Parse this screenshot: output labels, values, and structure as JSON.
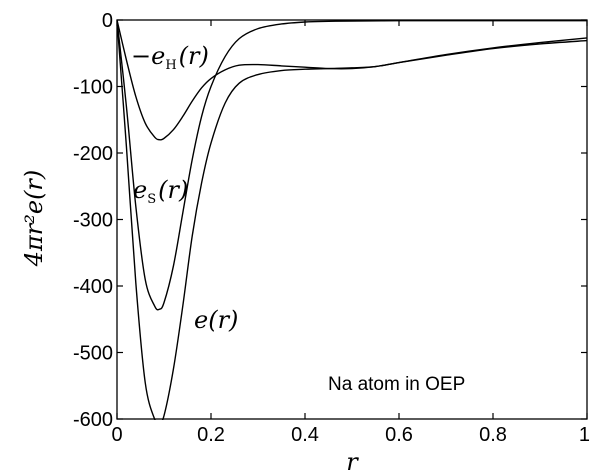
{
  "chart_data": {
    "type": "line",
    "xlabel": "r",
    "ylabel": "4πr²e(r)",
    "xlim": [
      0,
      1
    ],
    "ylim": [
      -600,
      0
    ],
    "xticks": [
      {
        "value": 0,
        "label": "0"
      },
      {
        "value": 0.2,
        "label": "0.2"
      },
      {
        "value": 0.4,
        "label": "0.4"
      },
      {
        "value": 0.6,
        "label": "0.6"
      },
      {
        "value": 0.8,
        "label": "0.8"
      },
      {
        "value": 1,
        "label": "1"
      }
    ],
    "yticks": [
      {
        "value": 0,
        "label": "0"
      },
      {
        "value": -100,
        "label": "-100"
      },
      {
        "value": -200,
        "label": "-200"
      },
      {
        "value": -300,
        "label": "-300"
      },
      {
        "value": -400,
        "label": "-400"
      },
      {
        "value": -500,
        "label": "-500"
      },
      {
        "value": -600,
        "label": "-600"
      }
    ],
    "grid": false,
    "annotation": "Na atom in OEP",
    "series": [
      {
        "name": "−e_H(r)",
        "label_main": "−e",
        "label_sub": "H",
        "label_tail": "(r)",
        "x": [
          0,
          0.02,
          0.04,
          0.06,
          0.08,
          0.09,
          0.1,
          0.12,
          0.14,
          0.16,
          0.18,
          0.2,
          0.23,
          0.26,
          0.3,
          0.35,
          0.4,
          0.45,
          0.5,
          0.55,
          0.6,
          0.7,
          0.8,
          0.9,
          1.0
        ],
        "y": [
          0,
          -60,
          -115,
          -155,
          -176,
          -180,
          -178,
          -165,
          -145,
          -122,
          -102,
          -88,
          -75,
          -68,
          -67,
          -69,
          -71,
          -73,
          -73,
          -70,
          -64,
          -52,
          -42,
          -34,
          -27
        ]
      },
      {
        "name": "e_S(r)",
        "label_main": "e",
        "label_sub": "S",
        "label_tail": "(r)",
        "x": [
          0,
          0.02,
          0.04,
          0.06,
          0.08,
          0.09,
          0.1,
          0.12,
          0.14,
          0.16,
          0.18,
          0.2,
          0.23,
          0.26,
          0.3,
          0.35,
          0.4,
          0.45,
          0.5,
          0.6,
          0.7,
          0.8,
          0.9,
          1.0
        ],
        "y": [
          0,
          -130,
          -280,
          -390,
          -430,
          -435,
          -425,
          -370,
          -290,
          -210,
          -145,
          -100,
          -55,
          -28,
          -13,
          -6,
          -3,
          -2,
          -1.5,
          -1,
          -1,
          -1,
          -1,
          -1
        ]
      },
      {
        "name": "e(r)",
        "label_main": "e",
        "label_sub": "",
        "label_tail": "(r)",
        "x": [
          0,
          0.02,
          0.04,
          0.06,
          0.08,
          0.09,
          0.1,
          0.12,
          0.14,
          0.16,
          0.18,
          0.2,
          0.23,
          0.26,
          0.3,
          0.35,
          0.4,
          0.45,
          0.5,
          0.55,
          0.6,
          0.7,
          0.8,
          0.9,
          1.0
        ],
        "y": [
          0,
          -190,
          -395,
          -545,
          -600,
          -605,
          -595,
          -525,
          -430,
          -325,
          -245,
          -185,
          -125,
          -95,
          -82,
          -76,
          -74,
          -73,
          -72,
          -70,
          -64,
          -53,
          -43,
          -36,
          -31
        ]
      }
    ]
  }
}
